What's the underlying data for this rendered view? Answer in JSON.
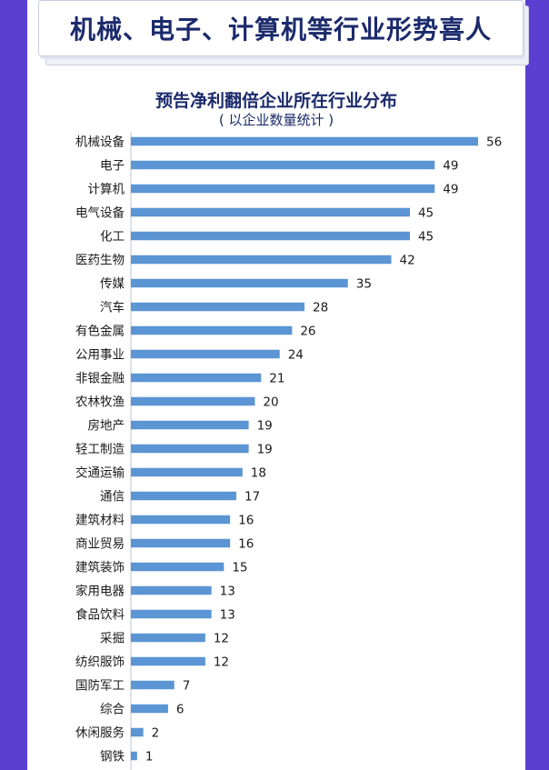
{
  "banner": {
    "title": "机械、电子、计算机等行业形势喜人"
  },
  "chart_data": {
    "type": "bar",
    "orientation": "horizontal",
    "title": "预告净利翻倍企业所在行业分布",
    "subtitle": "( 以企业数量统计 )",
    "xlim": [
      0,
      56
    ],
    "bar_color": "#5b95d3",
    "categories": [
      "机械设备",
      "电子",
      "计算机",
      "电气设备",
      "化工",
      "医药生物",
      "传媒",
      "汽车",
      "有色金属",
      "公用事业",
      "非银金融",
      "农林牧渔",
      "房地产",
      "轻工制造",
      "交通运输",
      "通信",
      "建筑材料",
      "商业贸易",
      "建筑装饰",
      "家用电器",
      "食品饮料",
      "采掘",
      "纺织服饰",
      "国防军工",
      "综合",
      "休闲服务",
      "钢铁"
    ],
    "values": [
      56,
      49,
      49,
      45,
      45,
      42,
      35,
      28,
      26,
      24,
      21,
      20,
      19,
      19,
      18,
      17,
      16,
      16,
      15,
      13,
      13,
      12,
      12,
      7,
      6,
      2,
      1
    ]
  }
}
